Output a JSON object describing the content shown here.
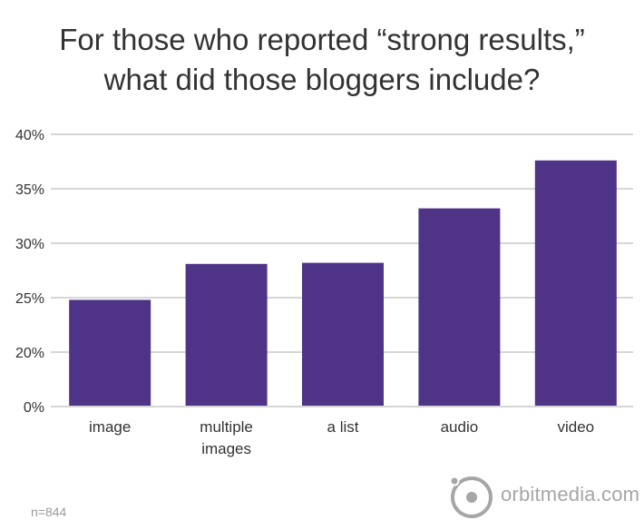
{
  "title_line1": "For those who reported “strong results,”",
  "title_line2": "what did those bloggers include?",
  "footnote": "n=844",
  "logo_text": "orbitmedia.com",
  "colors": {
    "bar": "#4E3387",
    "grid": "#D6D6D6",
    "logo": "#A6A6A6"
  },
  "chart_data": {
    "type": "bar",
    "title": "For those who reported “strong results,” what did those bloggers include?",
    "categories": [
      [
        "image"
      ],
      [
        "multiple",
        "images"
      ],
      [
        "a list"
      ],
      [
        "audio"
      ],
      [
        "video"
      ]
    ],
    "values": [
      24.8,
      28.1,
      28.2,
      33.2,
      37.6
    ],
    "y_ticks": [
      {
        "value": 0,
        "label": "0%"
      },
      {
        "value": 20,
        "label": "20%"
      },
      {
        "value": 25,
        "label": "25%"
      },
      {
        "value": 30,
        "label": "30%"
      },
      {
        "value": 35,
        "label": "35%"
      },
      {
        "value": 40,
        "label": "40%"
      }
    ],
    "axis_break": true,
    "ylim": [
      0,
      40
    ],
    "grid": true,
    "xlabel": "",
    "ylabel": ""
  }
}
